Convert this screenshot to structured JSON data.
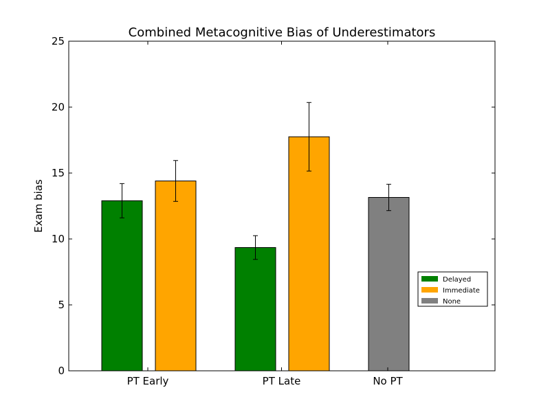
{
  "chart_data": {
    "type": "bar",
    "title": "Combined Metacognitive Bias of Underestimators",
    "xlabel": "",
    "ylabel": "Exam bias",
    "ylim": [
      0,
      25
    ],
    "yticks": [
      0,
      5,
      10,
      15,
      20,
      25
    ],
    "categories": [
      "PT Early",
      "PT Late",
      "No PT"
    ],
    "series": [
      {
        "name": "Delayed",
        "color": "#008000",
        "values": [
          12.9,
          9.35,
          null
        ],
        "errors": [
          1.3,
          0.9,
          null
        ]
      },
      {
        "name": "Immediate",
        "color": "#ffa500",
        "values": [
          14.4,
          17.75,
          null
        ],
        "errors": [
          1.55,
          2.6,
          null
        ]
      },
      {
        "name": "None",
        "color": "#808080",
        "values": [
          null,
          null,
          13.15
        ],
        "errors": [
          null,
          null,
          1.0
        ]
      }
    ],
    "bars": [
      {
        "series": "Delayed",
        "category": "PT Early",
        "value": 12.9,
        "error": 1.3,
        "color": "#008000"
      },
      {
        "series": "Immediate",
        "category": "PT Early",
        "value": 14.4,
        "error": 1.55,
        "color": "#ffa500"
      },
      {
        "series": "Delayed",
        "category": "PT Late",
        "value": 9.35,
        "error": 0.9,
        "color": "#008000"
      },
      {
        "series": "Immediate",
        "category": "PT Late",
        "value": 17.75,
        "error": 2.6,
        "color": "#ffa500"
      },
      {
        "series": "None",
        "category": "No PT",
        "value": 13.15,
        "error": 1.0,
        "color": "#808080"
      }
    ],
    "grid": false,
    "legend_position": "right"
  }
}
